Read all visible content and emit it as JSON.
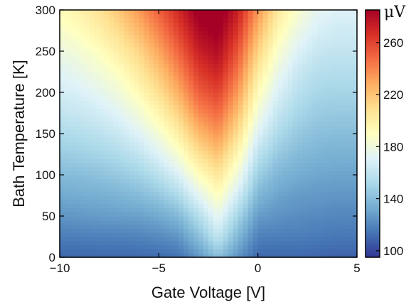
{
  "chart_data": {
    "type": "heatmap",
    "title": "",
    "xlabel": "Gate Voltage [V]",
    "ylabel": "Bath Temperature [K]",
    "xlim": [
      -10,
      5
    ],
    "ylim": [
      0,
      300
    ],
    "xticks": [
      -10,
      -5,
      0,
      5
    ],
    "xtick_labels": [
      "−10",
      "−5",
      "0",
      "5"
    ],
    "yticks": [
      0,
      50,
      100,
      150,
      200,
      250,
      300
    ],
    "ytick_labels": [
      "0",
      "50",
      "100",
      "150",
      "200",
      "250",
      "300"
    ],
    "colorbar": {
      "label": "μV",
      "range": [
        95,
        285
      ],
      "ticks": [
        100,
        140,
        180,
        220,
        260
      ],
      "tick_labels": [
        "100",
        "140",
        "180",
        "220",
        "260"
      ],
      "colormap": "RdYlBu_r",
      "colors": [
        "#313695",
        "#4575b4",
        "#74add1",
        "#abd9e9",
        "#e0f3f8",
        "#ffffbf",
        "#fee090",
        "#fdae61",
        "#f46d43",
        "#d73027",
        "#a50026"
      ]
    },
    "x": [
      -10,
      -9,
      -8,
      -7,
      -6,
      -5,
      -4,
      -3,
      -2,
      -1,
      0,
      1,
      2,
      3,
      4,
      5
    ],
    "y": [
      0,
      25,
      50,
      75,
      100,
      125,
      150,
      175,
      200,
      225,
      250,
      275,
      300
    ],
    "z": [
      [
        110,
        110,
        110,
        110,
        110,
        111,
        113,
        125,
        140,
        124,
        110,
        110,
        110,
        109,
        108,
        108
      ],
      [
        117,
        117,
        118,
        118,
        119,
        121,
        125,
        140,
        160,
        137,
        118,
        117,
        117,
        116,
        115,
        115
      ],
      [
        125,
        126,
        127,
        128,
        129,
        132,
        138,
        155,
        175,
        150,
        127,
        124,
        122,
        121,
        120,
        120
      ],
      [
        132,
        133,
        134,
        136,
        139,
        144,
        153,
        172,
        190,
        165,
        137,
        130,
        127,
        126,
        125,
        125
      ],
      [
        139,
        140,
        142,
        145,
        149,
        157,
        169,
        190,
        205,
        180,
        147,
        137,
        133,
        131,
        130,
        130
      ],
      [
        146,
        148,
        150,
        154,
        160,
        170,
        185,
        207,
        220,
        194,
        158,
        145,
        139,
        136,
        135,
        135
      ],
      [
        153,
        155,
        158,
        163,
        171,
        183,
        200,
        223,
        235,
        208,
        170,
        153,
        145,
        141,
        140,
        140
      ],
      [
        160,
        162,
        166,
        172,
        182,
        196,
        214,
        238,
        248,
        221,
        181,
        161,
        151,
        146,
        145,
        145
      ],
      [
        166,
        169,
        174,
        181,
        193,
        208,
        227,
        251,
        260,
        233,
        192,
        169,
        157,
        151,
        150,
        150
      ],
      [
        172,
        176,
        182,
        190,
        203,
        219,
        239,
        262,
        271,
        244,
        203,
        177,
        163,
        156,
        155,
        155
      ],
      [
        178,
        183,
        190,
        200,
        213,
        230,
        250,
        272,
        280,
        254,
        214,
        186,
        170,
        162,
        160,
        160
      ],
      [
        186,
        191,
        199,
        210,
        224,
        241,
        260,
        281,
        287,
        264,
        225,
        195,
        178,
        168,
        165,
        165
      ],
      [
        192,
        198,
        207,
        219,
        234,
        251,
        269,
        288,
        293,
        272,
        235,
        204,
        186,
        174,
        170,
        170
      ]
    ]
  }
}
